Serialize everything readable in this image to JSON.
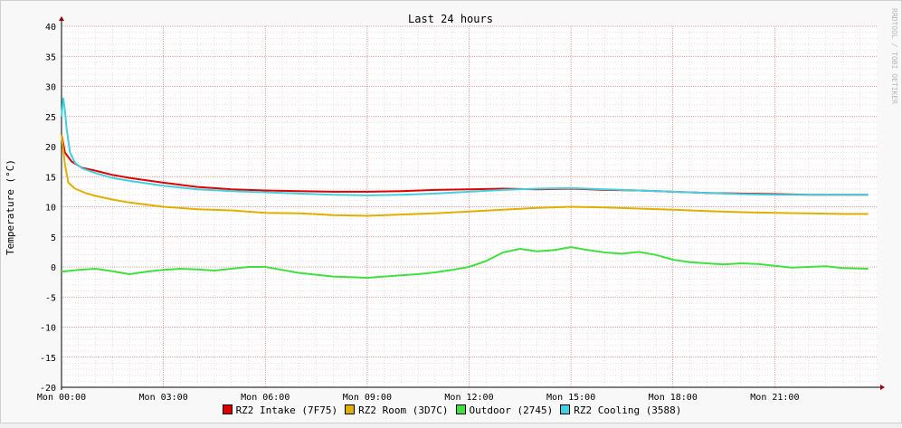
{
  "chart_data": {
    "type": "line",
    "title": "Last 24 hours",
    "ylabel": "Temperature (°C)",
    "xlabel": "",
    "ylim": [
      -20,
      40
    ],
    "yticks": [
      -20,
      -15,
      -10,
      -5,
      0,
      5,
      10,
      15,
      20,
      25,
      30,
      35,
      40
    ],
    "xlim": [
      0,
      23.75
    ],
    "xticks": [
      {
        "x": 0,
        "label": "Mon 00:00"
      },
      {
        "x": 3,
        "label": "Mon 03:00"
      },
      {
        "x": 6,
        "label": "Mon 06:00"
      },
      {
        "x": 9,
        "label": "Mon 09:00"
      },
      {
        "x": 12,
        "label": "Mon 12:00"
      },
      {
        "x": 15,
        "label": "Mon 15:00"
      },
      {
        "x": 18,
        "label": "Mon 18:00"
      },
      {
        "x": 21,
        "label": "Mon 21:00"
      }
    ],
    "grid": true,
    "legend_position": "bottom",
    "watermark": "RRDTOOL / TOBI OETIKER",
    "series": [
      {
        "name": "RZ2 Intake (7F75)",
        "color": "#e00000",
        "x": [
          0,
          0.1,
          0.3,
          0.6,
          1,
          1.5,
          2,
          3,
          4,
          5,
          6,
          7,
          8,
          9,
          10,
          11,
          12,
          13,
          14,
          15,
          16,
          17,
          18,
          19,
          20,
          21,
          22,
          23,
          23.75
        ],
        "y": [
          22,
          19,
          17.5,
          16.5,
          16,
          15.3,
          14.8,
          14,
          13.3,
          12.9,
          12.7,
          12.6,
          12.5,
          12.5,
          12.6,
          12.8,
          12.9,
          13.0,
          12.9,
          13.0,
          12.8,
          12.7,
          12.5,
          12.3,
          12.2,
          12.1,
          12.0,
          12.0,
          12.0
        ]
      },
      {
        "name": "RZ2 Room (3D7C)",
        "color": "#e0b000",
        "x": [
          0,
          0.1,
          0.2,
          0.4,
          0.7,
          1,
          1.5,
          2,
          3,
          4,
          5,
          6,
          7,
          8,
          9,
          10,
          11,
          12,
          13,
          14,
          15,
          16,
          17,
          18,
          19,
          20,
          21,
          22,
          23,
          23.75
        ],
        "y": [
          22,
          17,
          14,
          13,
          12.3,
          11.8,
          11.2,
          10.7,
          10.0,
          9.6,
          9.4,
          9.0,
          8.9,
          8.6,
          8.5,
          8.7,
          8.9,
          9.2,
          9.5,
          9.8,
          10.0,
          9.9,
          9.7,
          9.5,
          9.3,
          9.1,
          9.0,
          8.9,
          8.8,
          8.8
        ]
      },
      {
        "name": "Outdoor (2745)",
        "color": "#40e040",
        "x": [
          0,
          0.5,
          1,
          1.5,
          2,
          2.5,
          3,
          3.5,
          4,
          4.5,
          5,
          5.5,
          6,
          6.5,
          7,
          7.5,
          8,
          8.5,
          9,
          9.5,
          10,
          10.5,
          11,
          11.5,
          12,
          12.5,
          13,
          13.5,
          14,
          14.5,
          15,
          15.5,
          16,
          16.5,
          17,
          17.5,
          18,
          18.5,
          19,
          19.5,
          20,
          20.5,
          21,
          21.5,
          22,
          22.5,
          23,
          23.75
        ],
        "y": [
          -0.8,
          -0.5,
          -0.3,
          -0.7,
          -1.2,
          -0.8,
          -0.5,
          -0.3,
          -0.4,
          -0.6,
          -0.3,
          0.0,
          0.0,
          -0.5,
          -1.0,
          -1.3,
          -1.6,
          -1.7,
          -1.8,
          -1.6,
          -1.4,
          -1.2,
          -0.9,
          -0.5,
          0.0,
          1.0,
          2.4,
          3.0,
          2.6,
          2.8,
          3.3,
          2.8,
          2.4,
          2.2,
          2.5,
          2.0,
          1.2,
          0.8,
          0.6,
          0.4,
          0.6,
          0.5,
          0.2,
          -0.1,
          0.0,
          0.1,
          -0.2,
          -0.3
        ]
      },
      {
        "name": "RZ2 Cooling (3588)",
        "color": "#40d0e0",
        "x": [
          0,
          0.05,
          0.1,
          0.15,
          0.25,
          0.4,
          0.6,
          1,
          1.5,
          2,
          3,
          4,
          5,
          6,
          7,
          8,
          9,
          10,
          11,
          12,
          13,
          14,
          15,
          16,
          17,
          18,
          19,
          20,
          21,
          22,
          23,
          23.75
        ],
        "y": [
          25,
          28,
          26,
          23,
          19,
          17.3,
          16.4,
          15.6,
          14.8,
          14.3,
          13.5,
          12.9,
          12.6,
          12.4,
          12.2,
          12.0,
          11.9,
          12.0,
          12.2,
          12.5,
          12.8,
          13.0,
          13.1,
          12.9,
          12.7,
          12.5,
          12.3,
          12.1,
          12.0,
          12.0,
          12.0,
          12.0
        ]
      }
    ]
  }
}
